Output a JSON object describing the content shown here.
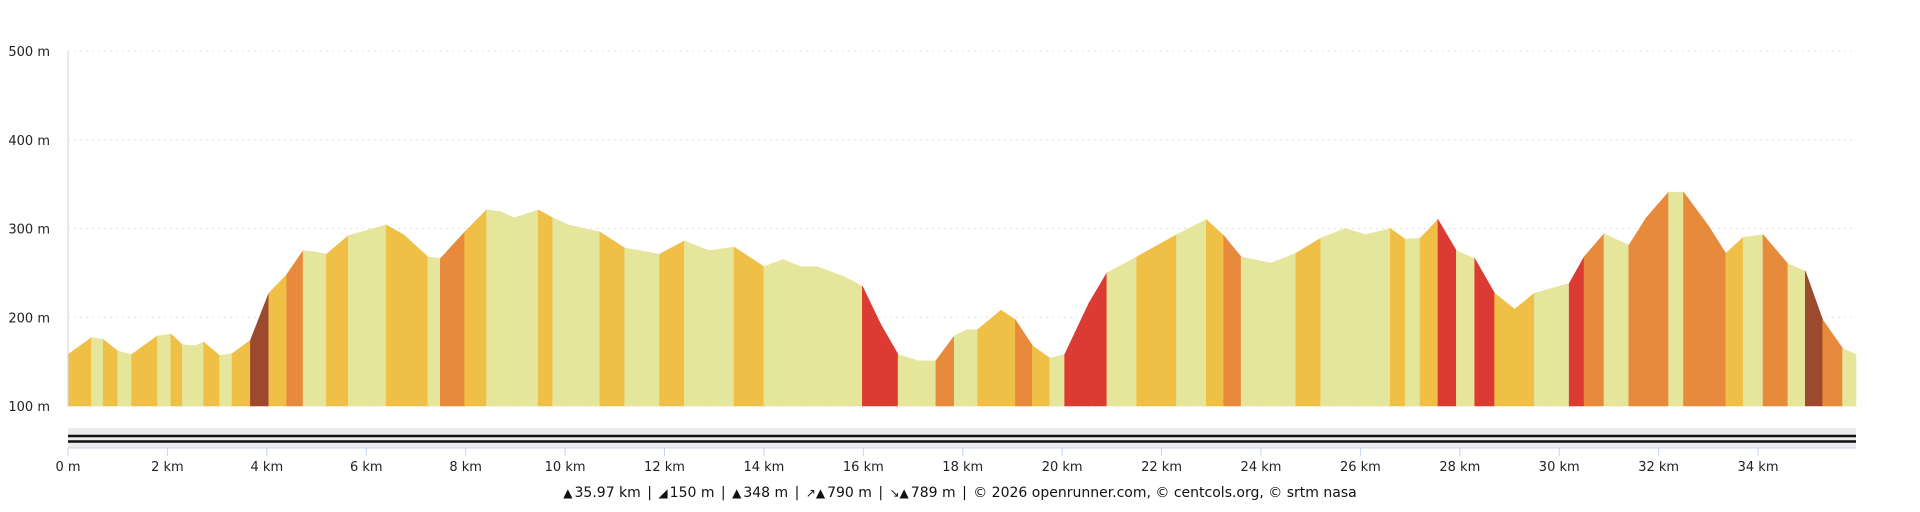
{
  "chart_data": {
    "type": "area",
    "title": "",
    "xlabel": "",
    "ylabel": "",
    "xlim": [
      0,
      35.97
    ],
    "ylim": [
      100,
      500
    ],
    "grid": true,
    "x_ticks": [
      "0 m",
      "2 km",
      "4 km",
      "6 km",
      "8 km",
      "10 km",
      "12 km",
      "14 km",
      "16 km",
      "18 km",
      "20 km",
      "22 km",
      "24 km",
      "26 km",
      "28 km",
      "30 km",
      "32 km",
      "34 km"
    ],
    "x_tick_values": [
      0,
      2,
      4,
      6,
      8,
      10,
      12,
      14,
      16,
      18,
      20,
      22,
      24,
      26,
      28,
      30,
      32,
      34
    ],
    "y_ticks": [
      "100 m",
      "200 m",
      "300 m",
      "400 m",
      "500 m"
    ],
    "y_tick_values": [
      100,
      200,
      300,
      400,
      500
    ],
    "gradient_colors": {
      "flat": "#e5e59c",
      "moderate": "#f0c046",
      "steep": "#e88a3c",
      "very_steep": "#dc3b33",
      "extreme": "#9c4a2e"
    },
    "x": [
      0,
      0.47,
      0.71,
      1.0,
      1.28,
      1.8,
      2.07,
      2.3,
      2.56,
      2.73,
      3.05,
      3.3,
      3.67,
      4.04,
      4.4,
      4.73,
      4.93,
      5.2,
      5.64,
      6.4,
      6.75,
      7.24,
      7.49,
      7.98,
      8.42,
      8.7,
      8.97,
      9.46,
      9.75,
      10.07,
      10.7,
      11.2,
      11.9,
      12.4,
      12.9,
      13.4,
      13.7,
      14.0,
      14.38,
      14.75,
      15.07,
      15.6,
      15.98,
      16.35,
      16.7,
      17.1,
      17.46,
      17.83,
      18.08,
      18.3,
      18.77,
      19.06,
      19.4,
      19.75,
      20.05,
      20.54,
      20.9,
      21.5,
      22.3,
      22.9,
      23.25,
      23.6,
      24.2,
      24.7,
      25.2,
      25.7,
      26.1,
      26.6,
      26.9,
      27.2,
      27.56,
      27.93,
      28.3,
      28.7,
      29.1,
      29.5,
      30.2,
      30.5,
      30.9,
      31.4,
      31.75,
      32.2,
      32.5,
      33.0,
      33.35,
      33.7,
      34.1,
      34.6,
      34.95,
      35.3,
      35.7,
      35.97
    ],
    "y": [
      158,
      177,
      175,
      162,
      158,
      179,
      181,
      169,
      168,
      172,
      157,
      159,
      174,
      227,
      248,
      275,
      274,
      271,
      292,
      304,
      293,
      268,
      266,
      296,
      321,
      319,
      312,
      321,
      312,
      304,
      296,
      278,
      271,
      286,
      275,
      279,
      268,
      257,
      265,
      257,
      257,
      246,
      235,
      192,
      158,
      151,
      151,
      179,
      186,
      186,
      208,
      197,
      168,
      154,
      158,
      216,
      250,
      268,
      293,
      310,
      292,
      268,
      261,
      272,
      289,
      300,
      293,
      300,
      288,
      289,
      310,
      275,
      266,
      227,
      209,
      227,
      238,
      268,
      294,
      281,
      312,
      341,
      341,
      303,
      272,
      290,
      293,
      260,
      252,
      197,
      165,
      158
    ]
  },
  "footer": {
    "distance": "35.97 km",
    "min_elevation": "150 m",
    "max_elevation": "348 m",
    "ascent": "790 m",
    "descent": "789 m",
    "credits": "© 2026 openrunner.com, © centcols.org, © srtm nasa",
    "separator": "|"
  }
}
